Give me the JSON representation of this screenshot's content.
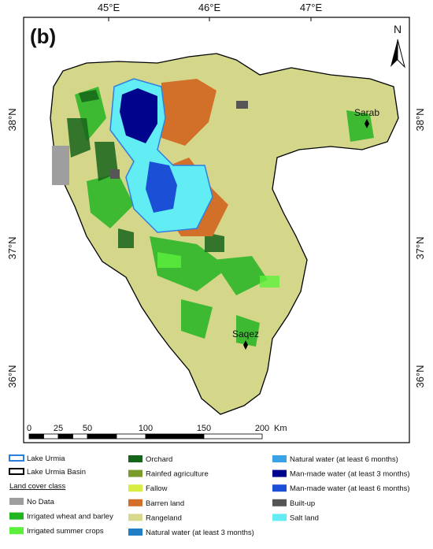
{
  "map": {
    "panel_label": "(b)",
    "north_label": "N",
    "lon_labels": [
      "45°E",
      "46°E",
      "47°E"
    ],
    "lat_labels": [
      "38°N",
      "37°N",
      "36°N"
    ],
    "places": [
      "Sarab",
      "Saqez"
    ],
    "scale": {
      "ticks": [
        0,
        25,
        50,
        100,
        150,
        200
      ],
      "unit": "Km"
    }
  },
  "legend": {
    "outlines": [
      {
        "label": "Lake Urmia",
        "color": "#2f7fe0"
      },
      {
        "label": "Lake Urmia Basin",
        "color": "#000000"
      }
    ],
    "heading": "Land cover class",
    "classes": [
      {
        "label": "No Data",
        "color": "#9e9e9e"
      },
      {
        "label": "Irrigated wheat and barley",
        "color": "#22b522"
      },
      {
        "label": "Irrigated summer crops",
        "color": "#5cf03c"
      },
      {
        "label": "Orchard",
        "color": "#16641a"
      },
      {
        "label": "Rainfed agriculture",
        "color": "#7a9a2a"
      },
      {
        "label": "Fallow",
        "color": "#d8ec44"
      },
      {
        "label": "Barren land",
        "color": "#d2702a"
      },
      {
        "label": "Rangeland",
        "color": "#d9d98e"
      },
      {
        "label": "Natural water (at least 3 months)",
        "color": "#1f7ec4"
      },
      {
        "label": "Natural water (at least 6 months)",
        "color": "#3aa2e6"
      },
      {
        "label": "Man-made water (at least 3 months)",
        "color": "#00048c"
      },
      {
        "label": "Man-made water (at least 6 months)",
        "color": "#1a4fd6"
      },
      {
        "label": "Built-up",
        "color": "#555555"
      },
      {
        "label": "Salt land",
        "color": "#62ecf4"
      }
    ]
  }
}
